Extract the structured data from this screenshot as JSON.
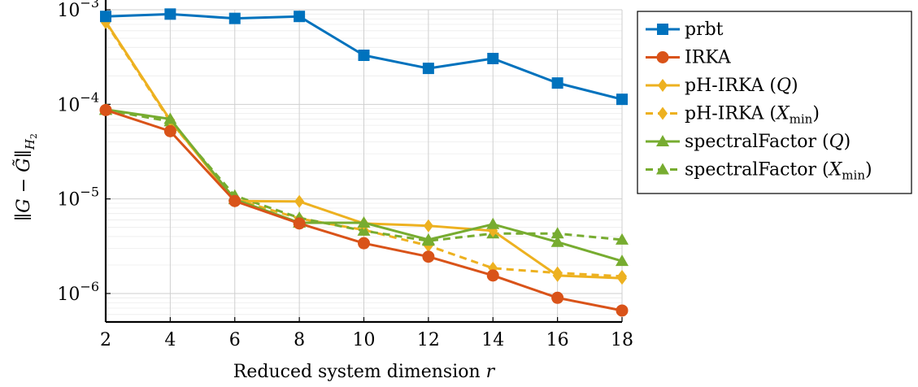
{
  "chart_data": {
    "type": "line",
    "x": [
      2,
      4,
      6,
      8,
      10,
      12,
      14,
      16,
      18
    ],
    "xlabel": "Reduced system dimension r",
    "ylabel": "||G − G̃||H2",
    "xlim": [
      2,
      18
    ],
    "ylim": [
      5e-07,
      0.001
    ],
    "yscale": "log",
    "grid": true,
    "legend_position": "outside-right",
    "x_tick_labels": [
      "2",
      "4",
      "6",
      "8",
      "10",
      "12",
      "14",
      "16",
      "18"
    ],
    "y_tick_labels": [
      {
        "value": 0.001,
        "mantissa": "10",
        "exponent": "−3"
      },
      {
        "value": 0.0001,
        "mantissa": "10",
        "exponent": "−4"
      },
      {
        "value": 1e-05,
        "mantissa": "10",
        "exponent": "−5"
      },
      {
        "value": 1e-06,
        "mantissa": "10",
        "exponent": "−6"
      }
    ],
    "series": [
      {
        "name": "prbt",
        "color": "#0072BD",
        "marker": "square",
        "dashed": false,
        "values": [
          0.00085,
          0.0009,
          0.00081,
          0.00085,
          0.00033,
          0.00024,
          0.000305,
          0.000168,
          0.000113
        ]
      },
      {
        "name": "IRKA",
        "color": "#D95319",
        "marker": "circle",
        "dashed": false,
        "values": [
          8.7e-05,
          5.2e-05,
          9.5e-06,
          5.5e-06,
          3.4e-06,
          2.45e-06,
          1.55e-06,
          9e-07,
          6.6e-07
        ]
      },
      {
        "name": "pH-IRKA (Q)",
        "color": "#EDB120",
        "marker": "diamond",
        "dashed": false,
        "values": [
          0.00075,
          6.8e-05,
          9.5e-06,
          9.4e-06,
          5.5e-06,
          5.2e-06,
          4.6e-06,
          1.55e-06,
          1.45e-06
        ]
      },
      {
        "name": "pH-IRKA (Xmin)",
        "color": "#EDB120",
        "marker": "diamond",
        "dashed": true,
        "values": [
          0.00073,
          6.6e-05,
          1e-05,
          6.2e-06,
          4.7e-06,
          3.2e-06,
          1.85e-06,
          1.65e-06,
          1.52e-06
        ]
      },
      {
        "name": "spectralFactor (Q)",
        "color": "#77AC30",
        "marker": "triangle",
        "dashed": false,
        "values": [
          8.8e-05,
          7e-05,
          9.9e-06,
          5.6e-06,
          5.6e-06,
          3.7e-06,
          5.4e-06,
          3.5e-06,
          2.2e-06
        ]
      },
      {
        "name": "spectralFactor (Xmin)",
        "color": "#77AC30",
        "marker": "triangle",
        "dashed": true,
        "values": [
          8.7e-05,
          6.6e-05,
          1.08e-05,
          6.3e-06,
          4.6e-06,
          3.6e-06,
          4.3e-06,
          4.3e-06,
          3.7e-06
        ]
      }
    ],
    "legend": [
      {
        "base": "prbt",
        "arg": "",
        "sub": ""
      },
      {
        "base": "IRKA",
        "arg": "",
        "sub": ""
      },
      {
        "base": "pH-IRKA (",
        "arg": "Q",
        "sub": ""
      },
      {
        "base": "pH-IRKA (",
        "arg": "X",
        "sub": "min"
      },
      {
        "base": "spectralFactor (",
        "arg": "Q",
        "sub": ""
      },
      {
        "base": "spectralFactor (",
        "arg": "X",
        "sub": "min"
      }
    ]
  }
}
